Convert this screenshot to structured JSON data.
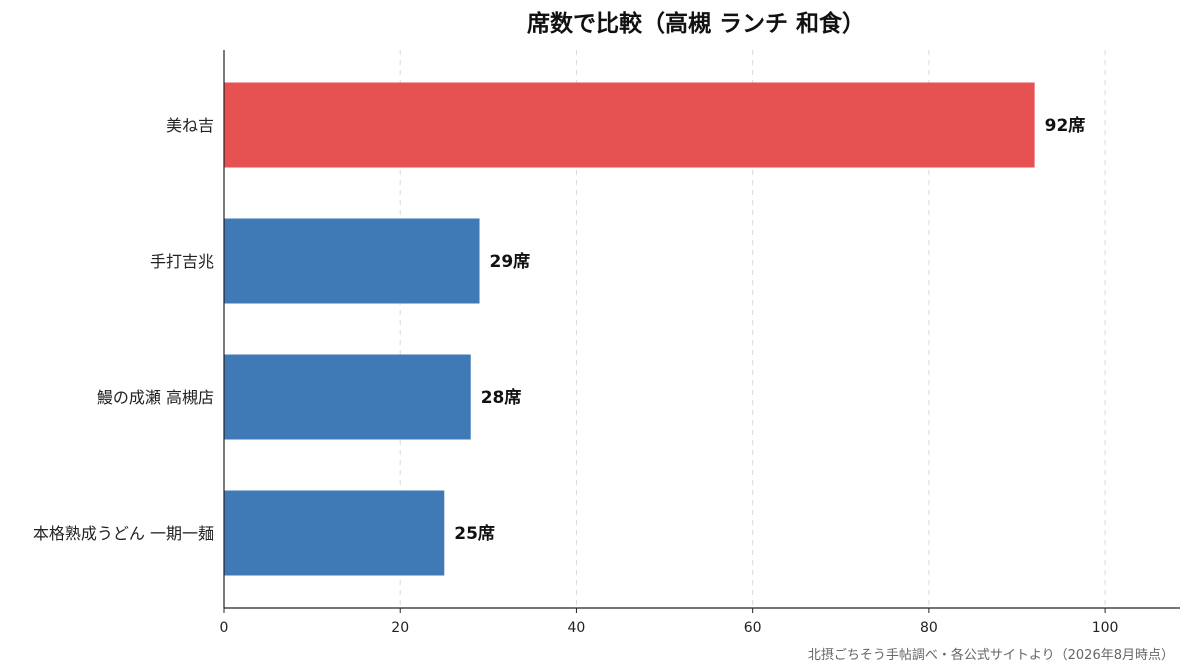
{
  "chart_data": {
    "type": "bar",
    "orientation": "horizontal",
    "title": "席数で比較（高槻 ランチ 和食）",
    "categories": [
      "美ね吉",
      "手打吉兆",
      "鰻の成瀬 高槻店",
      "本格熟成うどん 一期一麺"
    ],
    "values": [
      92,
      29,
      28,
      25
    ],
    "value_labels": [
      "92席",
      "29席",
      "28席",
      "25席"
    ],
    "bar_colors": [
      "#e65252",
      "#3f7ab6",
      "#3f7ab6",
      "#3f7ab6"
    ],
    "xlim": [
      0,
      108.5
    ],
    "xticks": [
      0,
      20,
      40,
      60,
      80,
      100
    ],
    "xtick_labels": [
      "0",
      "20",
      "40",
      "60",
      "80",
      "100"
    ],
    "xlabel": "",
    "ylabel": "",
    "grid": "vertical-dashed",
    "source": "北摂ごちそう手帖調べ・各公式サイトより（2026年8月時点）"
  }
}
